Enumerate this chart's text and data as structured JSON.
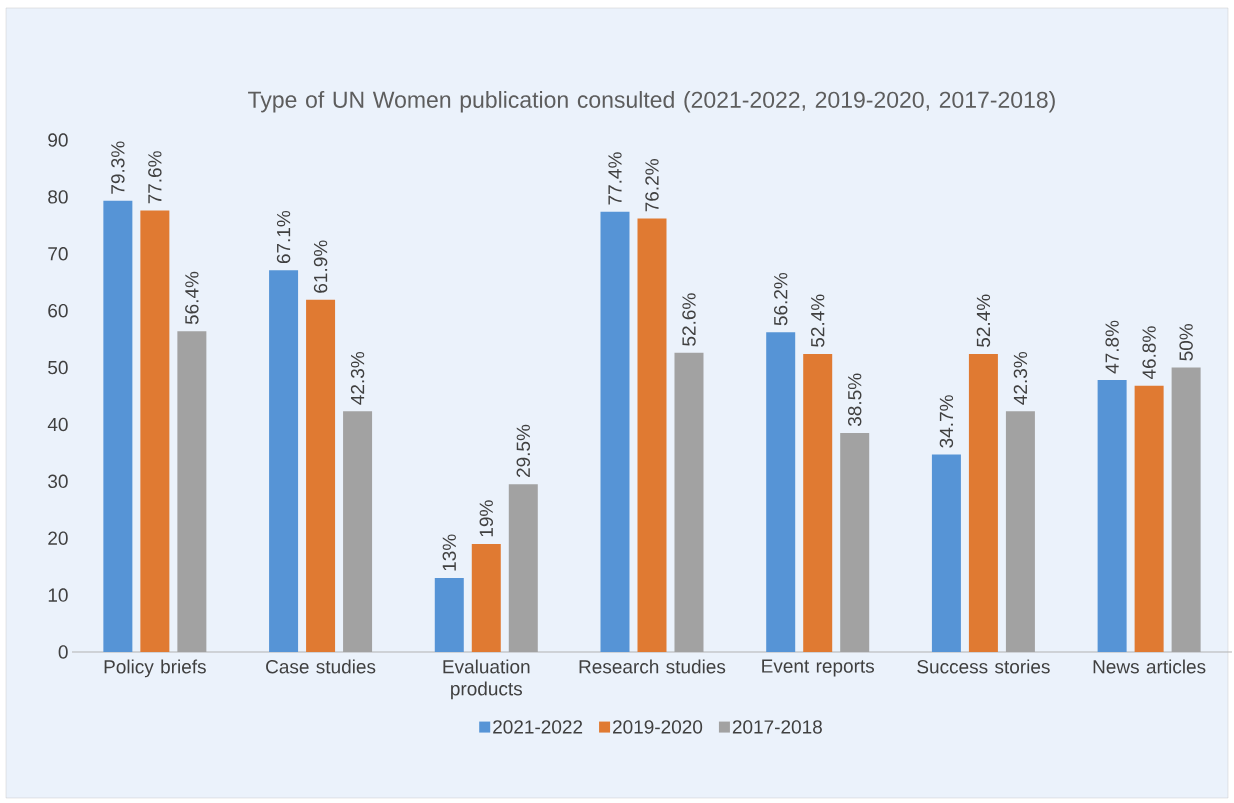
{
  "chart_data": {
    "type": "bar",
    "title": "Type of UN Women publication consulted (2021-2022, 2019-2020, 2017-2018)",
    "categories": [
      "Policy briefs",
      "Case studies",
      "Evaluation products",
      "Research studies",
      "Event reports",
      "Success stories",
      "News articles"
    ],
    "series": [
      {
        "name": "2021-2022",
        "color": "#5694d6",
        "values": [
          79.3,
          67.1,
          13,
          77.4,
          56.2,
          34.7,
          47.8
        ],
        "value_labels": [
          "79.3%",
          "67.1%",
          "13%",
          "77.4%",
          "56.2%",
          "34.7%",
          "47.8%"
        ]
      },
      {
        "name": "2019-2020",
        "color": "#e07a32",
        "values": [
          77.6,
          61.9,
          19,
          76.2,
          52.4,
          52.4,
          46.8
        ],
        "value_labels": [
          "77.6%",
          "61.9%",
          "19%",
          "76.2%",
          "52.4%",
          "52.4%",
          "46.8%"
        ]
      },
      {
        "name": "2017-2018",
        "color": "#a2a2a2",
        "values": [
          56.4,
          42.3,
          29.5,
          52.6,
          38.5,
          42.3,
          50
        ],
        "value_labels": [
          "56.4%",
          "42.3%",
          "29.5%",
          "52.6%",
          "38.5%",
          "42.3%",
          "50%"
        ]
      }
    ],
    "ylim": [
      0,
      90
    ],
    "yticks": [
      0,
      10,
      20,
      30,
      40,
      50,
      60,
      70,
      80,
      90
    ],
    "legend": "bottom"
  }
}
